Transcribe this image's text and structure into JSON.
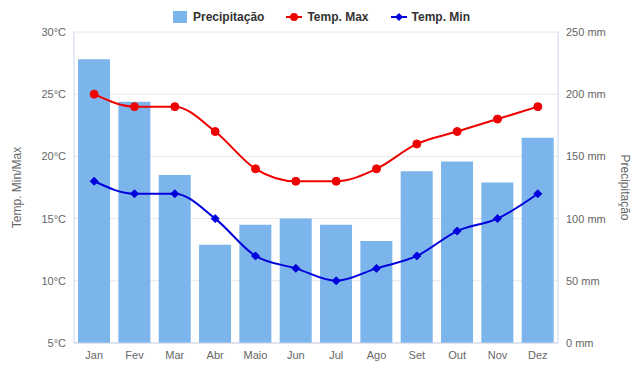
{
  "chart_data": {
    "type": "combo",
    "categories": [
      "Jan",
      "Fev",
      "Mar",
      "Abr",
      "Maio",
      "Jun",
      "Jul",
      "Ago",
      "Set",
      "Out",
      "Nov",
      "Dez"
    ],
    "series": [
      {
        "name": "Precipitação",
        "type": "bar",
        "color": "#7cb5ec",
        "axis": "y2",
        "values": [
          228,
          194,
          135,
          79,
          95,
          100,
          95,
          82,
          138,
          146,
          129,
          165
        ]
      },
      {
        "name": "Temp. Max",
        "type": "line",
        "color": "#ee0000",
        "marker": "circle",
        "line_style": "smooth",
        "values": [
          25,
          24,
          24,
          22,
          19,
          18,
          18,
          19,
          21,
          22,
          23,
          24
        ]
      },
      {
        "name": "Temp. Min",
        "type": "line",
        "color": "#0000dd",
        "marker": "diamond",
        "line_style": "smooth",
        "values": [
          18,
          17,
          17,
          15,
          12,
          11,
          10,
          11,
          12,
          14,
          15,
          17
        ]
      }
    ],
    "y_label": "Temp. Min/Max",
    "y2_label": "Precipitação",
    "ylim": [
      5,
      30
    ],
    "yticks": [
      {
        "value": 5,
        "label": "5°C"
      },
      {
        "value": 10,
        "label": "10°C"
      },
      {
        "value": 15,
        "label": "15°C"
      },
      {
        "value": 20,
        "label": "20°C"
      },
      {
        "value": 25,
        "label": "25°C"
      },
      {
        "value": 30,
        "label": "30°C"
      }
    ],
    "y2lim": [
      0,
      250
    ],
    "y2ticks": [
      {
        "value": 0,
        "label": "0 mm"
      },
      {
        "value": 50,
        "label": "50 mm"
      },
      {
        "value": 100,
        "label": "100 mm"
      },
      {
        "value": 150,
        "label": "150 mm"
      },
      {
        "value": 200,
        "label": "200 mm"
      },
      {
        "value": 250,
        "label": "250 mm"
      }
    ],
    "grid": true,
    "legend": "top"
  }
}
